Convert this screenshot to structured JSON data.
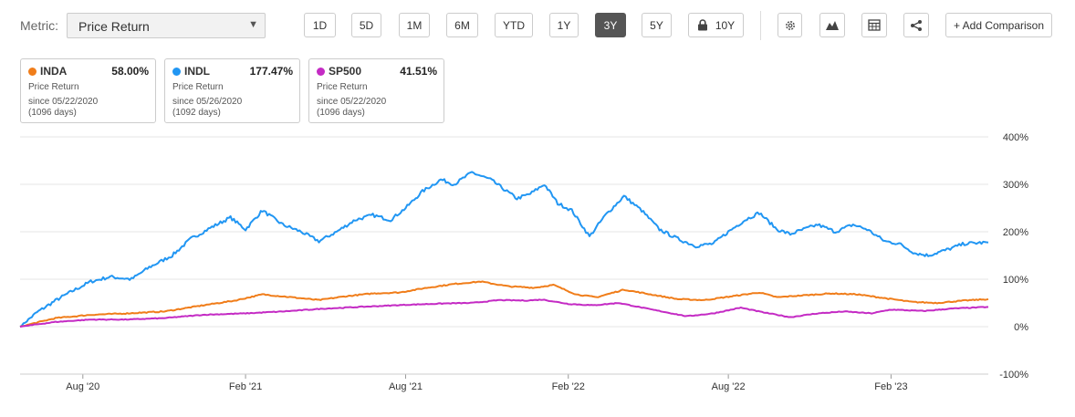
{
  "toolbar": {
    "metric_label": "Metric:",
    "metric_value": "Price Return",
    "ranges": [
      "1D",
      "5D",
      "1M",
      "6M",
      "YTD",
      "1Y",
      "3Y",
      "5Y",
      "10Y"
    ],
    "active_range": "3Y",
    "add_comparison": "+ Add Comparison"
  },
  "cards": [
    {
      "ticker": "INDA",
      "value": "58.00%",
      "metric": "Price Return",
      "since": "since 05/22/2020",
      "days": "(1096 days)",
      "color": "#f07d1a"
    },
    {
      "ticker": "INDL",
      "value": "177.47%",
      "metric": "Price Return",
      "since": "since 05/26/2020",
      "days": "(1092 days)",
      "color": "#2196f3"
    },
    {
      "ticker": "SP500",
      "value": "41.51%",
      "metric": "Price Return",
      "since": "since 05/22/2020",
      "days": "(1096 days)",
      "color": "#c42bc4"
    }
  ],
  "chart_data": {
    "type": "line",
    "x_ticks": [
      "Aug '20",
      "Feb '21",
      "Aug '21",
      "Feb '22",
      "Aug '22",
      "Feb '23"
    ],
    "y_ticks": [
      "400%",
      "300%",
      "200%",
      "100%",
      "0%",
      "-100%"
    ],
    "ylim": [
      -100,
      400
    ],
    "x_start": "2020-05-22",
    "x_end": "2023-05-22",
    "grid": true,
    "series": [
      {
        "name": "INDL",
        "color": "#2196f3",
        "points": [
          [
            "2020-05-22",
            0
          ],
          [
            "2020-06-10",
            30
          ],
          [
            "2020-07-01",
            55
          ],
          [
            "2020-07-20",
            75
          ],
          [
            "2020-08-10",
            95
          ],
          [
            "2020-09-01",
            105
          ],
          [
            "2020-09-25",
            100
          ],
          [
            "2020-10-15",
            125
          ],
          [
            "2020-11-10",
            150
          ],
          [
            "2020-12-01",
            185
          ],
          [
            "2020-12-25",
            210
          ],
          [
            "2021-01-15",
            230
          ],
          [
            "2021-02-01",
            205
          ],
          [
            "2021-02-20",
            245
          ],
          [
            "2021-03-15",
            215
          ],
          [
            "2021-04-05",
            200
          ],
          [
            "2021-04-25",
            180
          ],
          [
            "2021-05-15",
            200
          ],
          [
            "2021-06-05",
            225
          ],
          [
            "2021-06-25",
            235
          ],
          [
            "2021-07-15",
            225
          ],
          [
            "2021-08-01",
            250
          ],
          [
            "2021-08-20",
            285
          ],
          [
            "2021-09-10",
            310
          ],
          [
            "2021-09-25",
            300
          ],
          [
            "2021-10-15",
            325
          ],
          [
            "2021-11-05",
            310
          ],
          [
            "2021-11-20",
            290
          ],
          [
            "2021-12-05",
            270
          ],
          [
            "2021-12-20",
            280
          ],
          [
            "2022-01-05",
            300
          ],
          [
            "2022-01-20",
            260
          ],
          [
            "2022-02-05",
            245
          ],
          [
            "2022-02-25",
            190
          ],
          [
            "2022-03-15",
            235
          ],
          [
            "2022-04-05",
            275
          ],
          [
            "2022-04-25",
            245
          ],
          [
            "2022-05-15",
            205
          ],
          [
            "2022-06-05",
            185
          ],
          [
            "2022-06-25",
            170
          ],
          [
            "2022-07-15",
            175
          ],
          [
            "2022-08-01",
            200
          ],
          [
            "2022-08-20",
            225
          ],
          [
            "2022-09-05",
            240
          ],
          [
            "2022-09-25",
            205
          ],
          [
            "2022-10-10",
            195
          ],
          [
            "2022-10-25",
            205
          ],
          [
            "2022-11-10",
            215
          ],
          [
            "2022-11-30",
            200
          ],
          [
            "2022-12-20",
            215
          ],
          [
            "2023-01-05",
            205
          ],
          [
            "2023-01-25",
            180
          ],
          [
            "2023-02-10",
            175
          ],
          [
            "2023-02-28",
            155
          ],
          [
            "2023-03-15",
            150
          ],
          [
            "2023-04-05",
            162
          ],
          [
            "2023-04-25",
            175
          ],
          [
            "2023-05-22",
            177.47
          ]
        ]
      },
      {
        "name": "INDA",
        "color": "#f07d1a",
        "points": [
          [
            "2020-05-22",
            0
          ],
          [
            "2020-07-01",
            18
          ],
          [
            "2020-08-10",
            25
          ],
          [
            "2020-09-20",
            28
          ],
          [
            "2020-11-01",
            32
          ],
          [
            "2020-12-15",
            45
          ],
          [
            "2021-01-20",
            55
          ],
          [
            "2021-02-20",
            68
          ],
          [
            "2021-03-25",
            62
          ],
          [
            "2021-04-25",
            56
          ],
          [
            "2021-05-25",
            64
          ],
          [
            "2021-06-25",
            70
          ],
          [
            "2021-07-25",
            72
          ],
          [
            "2021-08-25",
            82
          ],
          [
            "2021-09-25",
            90
          ],
          [
            "2021-10-25",
            95
          ],
          [
            "2021-11-25",
            85
          ],
          [
            "2021-12-25",
            82
          ],
          [
            "2022-01-15",
            88
          ],
          [
            "2022-02-10",
            68
          ],
          [
            "2022-03-05",
            62
          ],
          [
            "2022-04-05",
            78
          ],
          [
            "2022-05-05",
            68
          ],
          [
            "2022-06-05",
            58
          ],
          [
            "2022-07-05",
            56
          ],
          [
            "2022-08-05",
            64
          ],
          [
            "2022-09-05",
            72
          ],
          [
            "2022-09-25",
            62
          ],
          [
            "2022-10-25",
            66
          ],
          [
            "2022-11-25",
            70
          ],
          [
            "2022-12-25",
            68
          ],
          [
            "2023-01-25",
            60
          ],
          [
            "2023-02-25",
            52
          ],
          [
            "2023-03-25",
            50
          ],
          [
            "2023-04-25",
            55
          ],
          [
            "2023-05-22",
            58
          ]
        ]
      },
      {
        "name": "SP500",
        "color": "#c42bc4",
        "points": [
          [
            "2020-05-22",
            0
          ],
          [
            "2020-07-01",
            10
          ],
          [
            "2020-08-10",
            15
          ],
          [
            "2020-09-20",
            15
          ],
          [
            "2020-11-01",
            18
          ],
          [
            "2020-12-15",
            25
          ],
          [
            "2021-02-01",
            28
          ],
          [
            "2021-03-15",
            32
          ],
          [
            "2021-05-01",
            38
          ],
          [
            "2021-06-15",
            42
          ],
          [
            "2021-08-01",
            46
          ],
          [
            "2021-09-15",
            49
          ],
          [
            "2021-10-15",
            50
          ],
          [
            "2021-11-15",
            56
          ],
          [
            "2021-12-15",
            55
          ],
          [
            "2022-01-03",
            57
          ],
          [
            "2022-02-01",
            48
          ],
          [
            "2022-03-01",
            45
          ],
          [
            "2022-03-30",
            50
          ],
          [
            "2022-05-01",
            38
          ],
          [
            "2022-06-15",
            22
          ],
          [
            "2022-07-15",
            28
          ],
          [
            "2022-08-15",
            40
          ],
          [
            "2022-09-10",
            30
          ],
          [
            "2022-10-10",
            20
          ],
          [
            "2022-11-10",
            28
          ],
          [
            "2022-12-10",
            32
          ],
          [
            "2023-01-10",
            28
          ],
          [
            "2023-02-01",
            36
          ],
          [
            "2023-03-10",
            33
          ],
          [
            "2023-04-10",
            38
          ],
          [
            "2023-05-22",
            41.51
          ]
        ]
      }
    ]
  }
}
